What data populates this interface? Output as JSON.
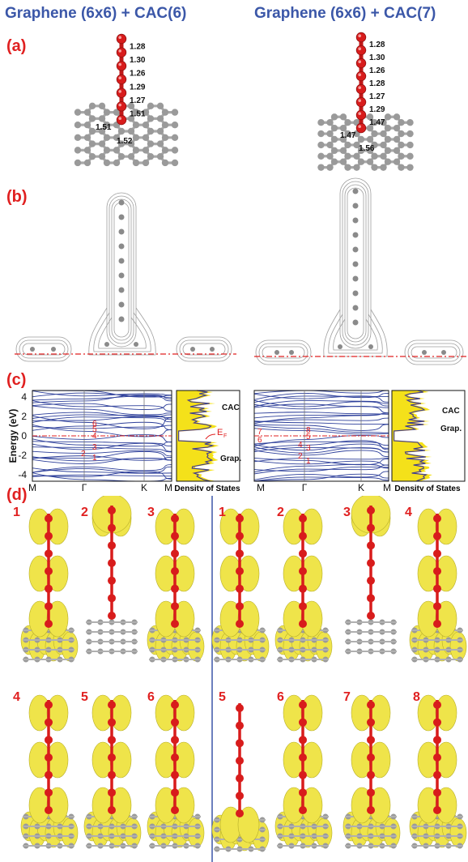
{
  "titles": {
    "left": "Graphene (6x6) + CAC(6)",
    "right": "Graphene (6x6) + CAC(7)"
  },
  "panel_labels": [
    "(a)",
    "(b)",
    "(c)",
    "(d)"
  ],
  "panel_a": {
    "left": {
      "chain_bond_lengths": [
        "1.28",
        "1.30",
        "1.26",
        "1.29",
        "1.27",
        "1.51"
      ],
      "base_bond_lengths": [
        "1.51",
        "1.52"
      ]
    },
    "right": {
      "chain_bond_lengths": [
        "1.28",
        "1.30",
        "1.26",
        "1.28",
        "1.27",
        "1.29",
        "1.47"
      ],
      "base_bond_lengths": [
        "1.47",
        "1.56"
      ]
    }
  },
  "panel_c": {
    "ylabel": "Energy (eV)",
    "yticks": [
      "4",
      "2",
      "0",
      "-2",
      "-4"
    ],
    "kpoints": [
      "M",
      "Γ",
      "K",
      "M"
    ],
    "dos_label": "Density of States",
    "dos_legend": [
      "CAC",
      "Grap."
    ],
    "fermi_label": "E",
    "fermi_sub": "F",
    "left_state_labels": [
      "6",
      "5",
      "4",
      "3",
      "2",
      "1"
    ],
    "right_state_labels": [
      "7",
      "6",
      "8",
      "5",
      "4",
      "3",
      "2",
      "1"
    ]
  },
  "panel_d": {
    "left_top": [
      "1",
      "2",
      "3"
    ],
    "left_bottom": [
      "4",
      "5",
      "6"
    ],
    "right_top": [
      "1",
      "2",
      "3",
      "4"
    ],
    "right_bottom": [
      "5",
      "6",
      "7",
      "8"
    ]
  },
  "colors": {
    "title": "#3b57a8",
    "label": "#e02020",
    "band": "#2d3f9a",
    "dos_fill": "#f4e11a",
    "dos_orange": "#f29a1f",
    "orbital": "#efe44a",
    "carbon": "#9a9a9a",
    "chain": "#d81c1c"
  }
}
